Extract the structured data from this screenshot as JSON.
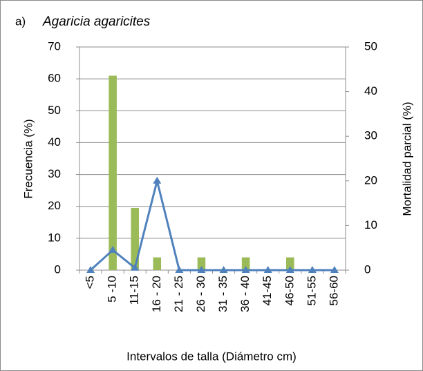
{
  "chart_data": {
    "type": "bar_line",
    "panel_label": "a)",
    "title": "Agaricia agaricites",
    "x_label": "Intervalos de talla (Diámetro cm)",
    "y_label": "Frecuencia (%)",
    "y2_label": "Mortalidad parcial (%)",
    "categories": [
      "<5",
      "5 -10",
      "11-15",
      "16 - 20",
      "21 - 25",
      "26 - 30",
      "31 - 35",
      "36 - 40",
      "41-45",
      "46-50",
      "51-55",
      "56-60"
    ],
    "series": [
      {
        "name": "Frecuencia",
        "type": "bar",
        "color": "#9bbb59",
        "axis": "y",
        "values": [
          0,
          61,
          19.5,
          4,
          0,
          4,
          0,
          4,
          0,
          4,
          0,
          0
        ]
      },
      {
        "name": "Mortalidad parcial",
        "type": "line",
        "color": "#4f81bd",
        "axis": "y2",
        "values": [
          0,
          4.5,
          0.5,
          20,
          0,
          0,
          0,
          0,
          0,
          0,
          0,
          0
        ]
      }
    ],
    "ylim": [
      0,
      70
    ],
    "yticks": [
      0,
      10,
      20,
      30,
      40,
      50,
      60,
      70
    ],
    "y2lim": [
      0,
      50
    ],
    "y2ticks": [
      0,
      10,
      20,
      30,
      40,
      50
    ],
    "grid": true
  }
}
